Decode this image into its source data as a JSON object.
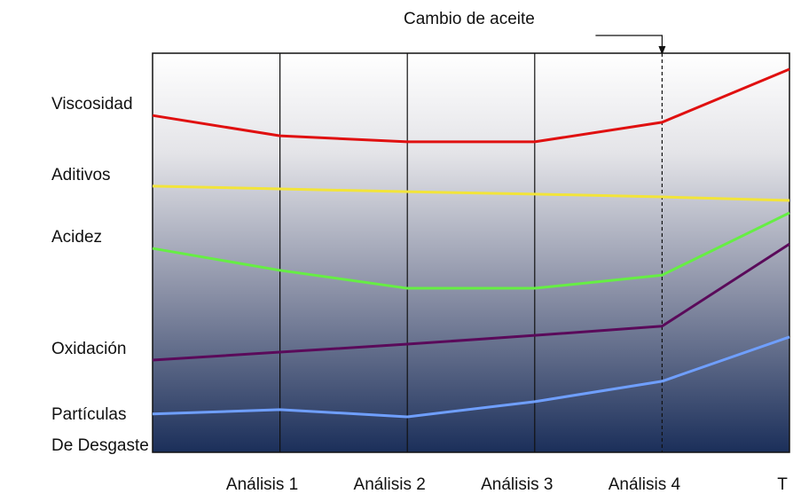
{
  "chart_data": {
    "type": "line",
    "categories": [
      null,
      "Análisis 1",
      "Análisis 2",
      "Análisis 3",
      "Análisis 4",
      "T"
    ],
    "ylim": [
      0,
      100
    ],
    "annotation": {
      "text": "Cambio de aceite",
      "category_index": 4
    },
    "series": [
      {
        "name": "Viscosidad",
        "color": "#e01010",
        "values": [
          84.4,
          79.3,
          77.8,
          77.8,
          82.7,
          96.0
        ]
      },
      {
        "name": "Aditivos",
        "color": "#f2e43a",
        "values": [
          66.7,
          66.0,
          65.3,
          64.7,
          64.0,
          63.1
        ]
      },
      {
        "name": "Acidez",
        "color": "#66ee44",
        "values": [
          51.1,
          45.6,
          41.1,
          41.1,
          44.4,
          60.0
        ]
      },
      {
        "name": "Oxidación",
        "color": "#5a0a5a",
        "values": [
          23.1,
          25.1,
          27.1,
          29.3,
          31.6,
          52.2
        ]
      },
      {
        "name": "Partículas De Desgaste",
        "color": "#6f9fff",
        "values": [
          9.6,
          10.7,
          8.9,
          12.7,
          17.8,
          28.9
        ]
      }
    ]
  }
}
